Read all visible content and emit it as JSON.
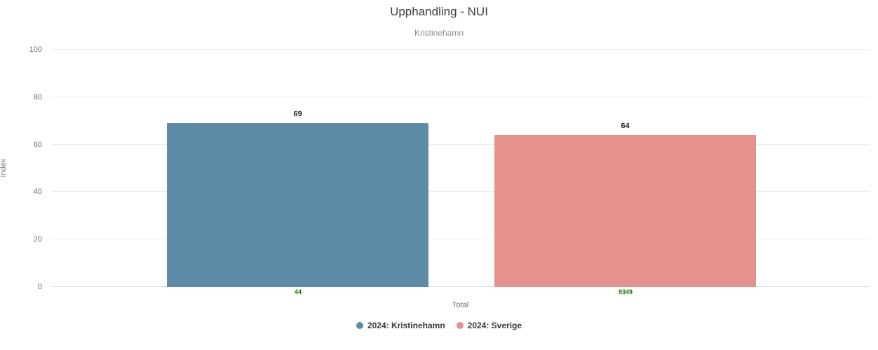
{
  "title": "Upphandling - NUI",
  "subtitle": "Kristinehamn",
  "chart_data": {
    "type": "bar",
    "categories": [
      "Total"
    ],
    "series": [
      {
        "name": "2024: Kristinehamn",
        "value": 69,
        "n": "44",
        "color": "#5e8ca7"
      },
      {
        "name": "2024: Sverige",
        "value": 64,
        "n": "9349",
        "color": "#e5928e"
      }
    ],
    "title": "Upphandling - NUI",
    "subtitle": "Kristinehamn",
    "xlabel": "Total",
    "ylabel": "Index",
    "ylim": [
      0,
      100
    ],
    "yticks": [
      0,
      20,
      40,
      60,
      80,
      100
    ],
    "grid": true,
    "legend_position": "bottom"
  },
  "colors": {
    "grid": "#ececec",
    "zero_line": "#d7dde3",
    "value_label": "#1a1a1a",
    "n_label": "#0d7a0d"
  }
}
